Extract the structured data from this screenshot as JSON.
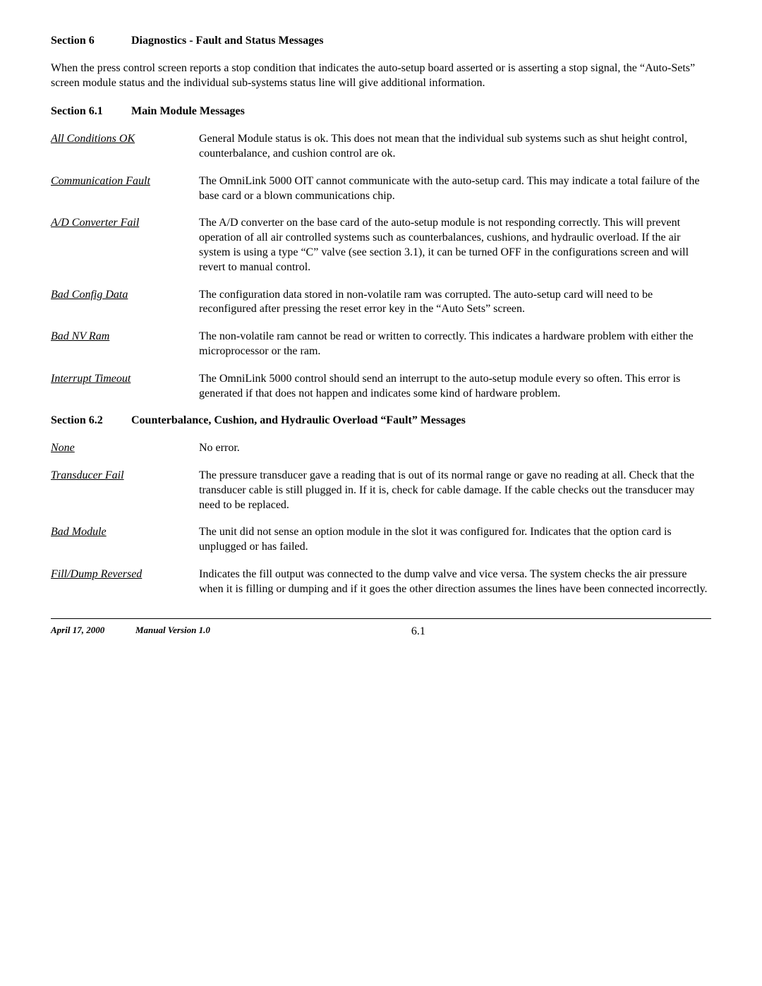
{
  "header": {
    "section_num": "Section 6",
    "section_title": "Diagnostics - Fault and Status Messages"
  },
  "intro": "When the press control screen reports a stop condition that indicates the auto-setup board asserted or is asserting a stop signal, the “Auto-Sets” screen module status and the individual sub-systems status line will give additional information.",
  "sub1": {
    "num": "Section 6.1",
    "title": "Main Module Messages"
  },
  "entries1": {
    "a": {
      "term": "All Conditions OK",
      "desc": "General Module status is ok.  This does not mean that the individual sub systems such as shut height control, counterbalance, and cushion control are ok."
    },
    "b": {
      "term": "Communication Fault",
      "desc": "The OmniLink 5000 OIT cannot communicate with the auto-setup card.  This may indicate a total failure of the base card or a blown communications chip."
    },
    "c": {
      "term": "A/D Converter Fail",
      "desc": "The A/D converter on the base card of the auto-setup module is not responding correctly.  This will prevent operation of all air controlled systems such as counterbalances, cushions, and hydraulic overload.  If the air system is using a type “C” valve (see section 3.1), it can be turned OFF in the configurations screen and will revert to manual control."
    },
    "d": {
      "term": "Bad Config Data",
      "desc": "The configuration data stored in non-volatile ram was corrupted.  The auto-setup card will need to be reconfigured after pressing the reset error key in the “Auto Sets” screen."
    },
    "e": {
      "term": "Bad NV Ram",
      "desc": "The non-volatile ram cannot be read or written to correctly.  This indicates a hardware problem with either the microprocessor or the ram."
    },
    "f": {
      "term": "Interrupt Timeout",
      "desc": "The OmniLink 5000 control should send an interrupt to the auto-setup module every so often.  This error is generated if that does not happen and  indicates some kind of hardware problem."
    }
  },
  "sub2": {
    "num": "Section 6.2",
    "title": "Counterbalance, Cushion, and Hydraulic Overload “Fault” Messages"
  },
  "entries2": {
    "a": {
      "term": "None",
      "desc": "No error."
    },
    "b": {
      "term": "Transducer Fail",
      "desc": "The pressure transducer gave a reading that is out of its normal range or gave no reading at all.  Check that the transducer cable is still plugged in.  If it is, check for cable damage.  If the cable checks out the transducer may need to be replaced."
    },
    "c": {
      "term": "Bad Module",
      "desc": "The unit did not sense an option  module in the slot it was configured for.  Indicates that the option card is unplugged or has failed."
    },
    "d": {
      "term": "Fill/Dump Reversed",
      "desc": "Indicates the fill output was connected to the dump valve and vice versa. The system checks the air pressure when it is filling or dumping and if it goes the other direction assumes the lines have been connected incorrectly."
    }
  },
  "footer": {
    "date": "April 17, 2000",
    "version": "Manual Version 1.0",
    "page": "6.1"
  }
}
